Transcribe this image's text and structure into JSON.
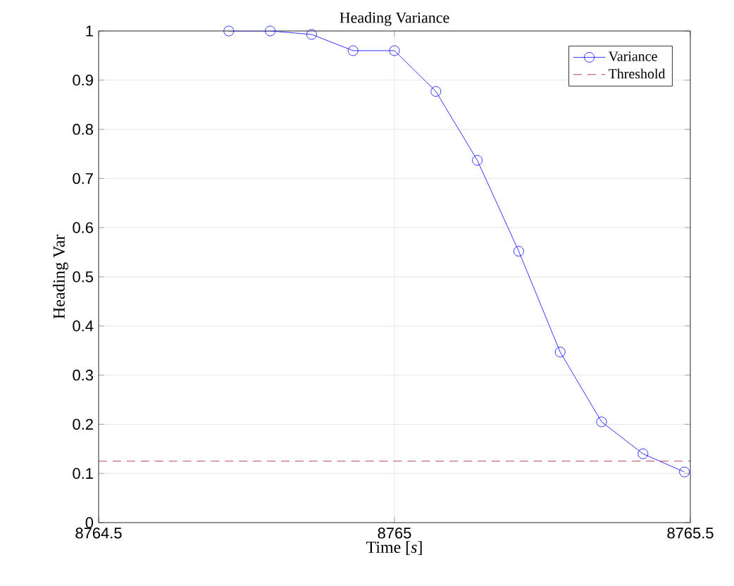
{
  "chart_data": {
    "type": "line",
    "title": "Heading Variance",
    "xlabel": "Time [*s*]",
    "ylabel": "Heading Var",
    "series": [
      {
        "name": "Variance",
        "color": "#0000ff",
        "marker": "circle",
        "line_style": "solid",
        "x": [
          8764.72,
          8764.79,
          8764.86,
          8764.93,
          8765.0,
          8765.07,
          8765.14,
          8765.21,
          8765.28,
          8765.35,
          8765.42,
          8765.49
        ],
        "values": [
          1.0,
          1.0,
          0.993,
          0.96,
          0.96,
          0.877,
          0.737,
          0.552,
          0.347,
          0.205,
          0.14,
          0.103
        ]
      }
    ],
    "ref_lines": [
      {
        "axis": "y",
        "value": 0.125,
        "label": "Threshold",
        "color": "#a2142f",
        "line_style": "dashed"
      }
    ],
    "xlim": [
      8764.5,
      8765.5
    ],
    "xticks": [
      8764.5,
      8765,
      8765.5
    ],
    "ylim": [
      0,
      1
    ],
    "yticks": [
      0,
      0.1,
      0.2,
      0.3,
      0.4,
      0.5,
      0.6,
      0.7,
      0.8,
      0.9,
      1
    ],
    "grid": true,
    "legend": "top right"
  }
}
